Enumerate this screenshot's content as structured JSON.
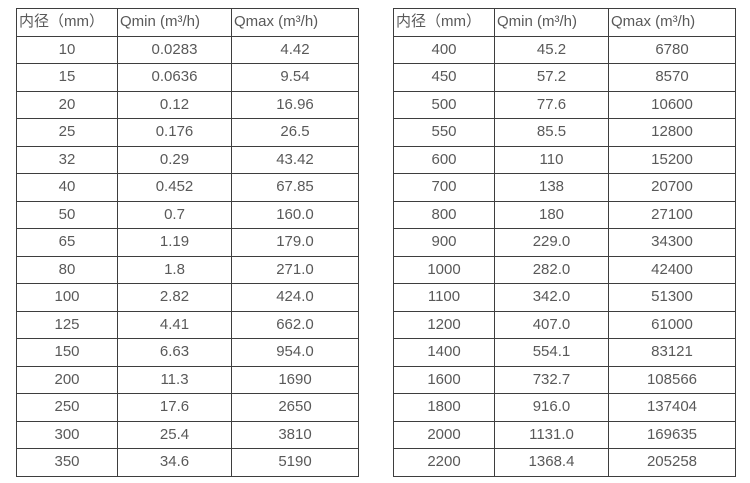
{
  "colors": {
    "text": "#595959",
    "border": "#3e3e3e",
    "background": "#ffffff"
  },
  "table_left": {
    "headers": [
      "内径（mm）",
      "Qmin (m³/h)",
      "Qmax (m³/h)"
    ],
    "rows": [
      [
        "10",
        "0.0283",
        "4.42"
      ],
      [
        "15",
        "0.0636",
        "9.54"
      ],
      [
        "20",
        "0.12",
        "16.96"
      ],
      [
        "25",
        "0.176",
        "26.5"
      ],
      [
        "32",
        "0.29",
        "43.42"
      ],
      [
        "40",
        "0.452",
        "67.85"
      ],
      [
        "50",
        "0.7",
        "160.0"
      ],
      [
        "65",
        "1.19",
        "179.0"
      ],
      [
        "80",
        "1.8",
        "271.0"
      ],
      [
        "100",
        "2.82",
        "424.0"
      ],
      [
        "125",
        "4.41",
        "662.0"
      ],
      [
        "150",
        "6.63",
        "954.0"
      ],
      [
        "200",
        "11.3",
        "1690"
      ],
      [
        "250",
        "17.6",
        "2650"
      ],
      [
        "300",
        "25.4",
        "3810"
      ],
      [
        "350",
        "34.6",
        "5190"
      ]
    ]
  },
  "table_right": {
    "headers": [
      "内径（mm）",
      "Qmin (m³/h)",
      "Qmax (m³/h)"
    ],
    "rows": [
      [
        "400",
        "45.2",
        "6780"
      ],
      [
        "450",
        "57.2",
        "8570"
      ],
      [
        "500",
        "77.6",
        "10600"
      ],
      [
        "550",
        "85.5",
        "12800"
      ],
      [
        "600",
        "110",
        "15200"
      ],
      [
        "700",
        "138",
        "20700"
      ],
      [
        "800",
        "180",
        "27100"
      ],
      [
        "900",
        "229.0",
        "34300"
      ],
      [
        "1000",
        "282.0",
        "42400"
      ],
      [
        "1100",
        "342.0",
        "51300"
      ],
      [
        "1200",
        "407.0",
        "61000"
      ],
      [
        "1400",
        "554.1",
        "83121"
      ],
      [
        "1600",
        "732.7",
        "108566"
      ],
      [
        "1800",
        "916.0",
        "137404"
      ],
      [
        "2000",
        "1131.0",
        "169635"
      ],
      [
        "2200",
        "1368.4",
        "205258"
      ]
    ]
  }
}
